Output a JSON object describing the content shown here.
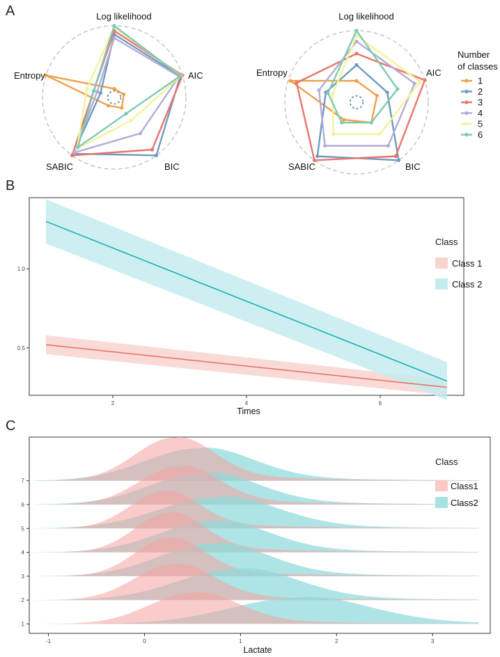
{
  "panels": {
    "a": "A",
    "b": "B",
    "c": "C"
  },
  "chart_data": [
    {
      "type": "radar",
      "panel": "A-left",
      "axes": [
        "Log likelihood",
        "AIC",
        "BIC",
        "SABIC",
        "Entropy"
      ],
      "series": [
        {
          "name": "1",
          "values": [
            0.12,
            0.14,
            0.18,
            0.14,
            1.0
          ]
        },
        {
          "name": "2",
          "values": [
            0.88,
            0.97,
            1.0,
            0.97,
            0.2
          ]
        },
        {
          "name": "3",
          "values": [
            0.93,
            1.0,
            0.9,
            1.0,
            0.3
          ]
        },
        {
          "name": "4",
          "values": [
            0.83,
            0.95,
            0.62,
            0.95,
            0.25
          ]
        },
        {
          "name": "5",
          "values": [
            0.98,
            0.98,
            0.4,
            0.88,
            0.4
          ]
        },
        {
          "name": "6",
          "values": [
            1.0,
            0.97,
            0.28,
            0.86,
            0.3
          ]
        }
      ]
    },
    {
      "type": "radar",
      "panel": "A-right",
      "axes": [
        "Log likelihood",
        "AIC",
        "BIC",
        "SABIC",
        "Entropy"
      ],
      "series": [
        {
          "name": "1",
          "values": [
            0.3,
            0.3,
            0.35,
            0.3,
            0.97
          ]
        },
        {
          "name": "2",
          "values": [
            0.52,
            0.45,
            1.0,
            0.93,
            0.45
          ]
        },
        {
          "name": "3",
          "values": [
            0.68,
            1.0,
            0.93,
            1.0,
            0.88
          ]
        },
        {
          "name": "4",
          "values": [
            0.85,
            0.85,
            0.75,
            0.75,
            0.55
          ]
        },
        {
          "name": "5",
          "values": [
            0.93,
            0.93,
            0.55,
            0.55,
            0.35
          ]
        },
        {
          "name": "6",
          "values": [
            1.0,
            0.6,
            0.35,
            0.35,
            0.42
          ]
        }
      ]
    },
    {
      "type": "line",
      "panel": "B",
      "xlabel": "Times",
      "ylabel": "",
      "xlim": [
        0.75,
        7.25
      ],
      "ylim": [
        0.2,
        1.45
      ],
      "xticks": [
        "2",
        "4",
        "6"
      ],
      "xtick_values": [
        2,
        4,
        6
      ],
      "yticks": [
        "0.5",
        "1.0"
      ],
      "ytick_values": [
        0.5,
        1.0
      ],
      "series": [
        {
          "name": "Class 1",
          "x": [
            1,
            7
          ],
          "y": [
            0.52,
            0.25
          ],
          "lower": [
            0.46,
            0.2
          ],
          "upper": [
            0.58,
            0.3
          ],
          "line_color": "#E8736C",
          "fill_color": "#F9D3D0"
        },
        {
          "name": "Class 2",
          "x": [
            1,
            7
          ],
          "y": [
            1.3,
            0.29
          ],
          "lower": [
            1.16,
            0.17
          ],
          "upper": [
            1.44,
            0.41
          ],
          "line_color": "#1FB0B5",
          "fill_color": "#C4ECEE"
        }
      ],
      "legend_title": "Class"
    },
    {
      "type": "ridgeline",
      "panel": "C",
      "xlabel": "Lactate",
      "xlim": [
        -1.2,
        3.6
      ],
      "xticks": [
        "-1",
        "0",
        "1",
        "2",
        "3"
      ],
      "xtick_values": [
        -1,
        0,
        1,
        2,
        3
      ],
      "yticks": [
        "1",
        "2",
        "3",
        "4",
        "5",
        "6",
        "7"
      ],
      "legend_title": "Class",
      "groups": [
        {
          "y": 1,
          "class1": {
            "peak": 0.5,
            "sd": 0.45,
            "height": 1.3
          },
          "class2": {
            "peak": 1.6,
            "sd": 0.7,
            "height": 1.1
          }
        },
        {
          "y": 2,
          "class1": {
            "peak": 0.3,
            "sd": 0.4,
            "height": 1.5
          },
          "class2": {
            "peak": 0.95,
            "sd": 0.6,
            "height": 1.3
          }
        },
        {
          "y": 3,
          "class1": {
            "peak": 0.25,
            "sd": 0.35,
            "height": 1.6
          },
          "class2": {
            "peak": 0.7,
            "sd": 0.55,
            "height": 1.35
          }
        },
        {
          "y": 4,
          "class1": {
            "peak": 0.25,
            "sd": 0.35,
            "height": 1.65
          },
          "class2": {
            "peak": 0.7,
            "sd": 0.55,
            "height": 1.3
          }
        },
        {
          "y": 5,
          "class1": {
            "peak": 0.2,
            "sd": 0.35,
            "height": 1.55
          },
          "class2": {
            "peak": 0.75,
            "sd": 0.6,
            "height": 1.3
          }
        },
        {
          "y": 6,
          "class1": {
            "peak": 0.35,
            "sd": 0.4,
            "height": 1.6
          },
          "class2": {
            "peak": 0.6,
            "sd": 0.55,
            "height": 1.3
          }
        },
        {
          "y": 7,
          "class1": {
            "peak": 0.3,
            "sd": 0.4,
            "height": 1.8
          },
          "class2": {
            "peak": 0.55,
            "sd": 0.55,
            "height": 1.35
          }
        }
      ],
      "classes": [
        {
          "name": "Class1",
          "color": "#F4A3A0"
        },
        {
          "name": "Class2",
          "color": "#8FD9DB"
        }
      ]
    }
  ],
  "legend_a": {
    "title_line1": "Number",
    "title_line2": "of classes",
    "items": [
      {
        "label": "1",
        "color": "#F0A048"
      },
      {
        "label": "2",
        "color": "#6E9AC0"
      },
      {
        "label": "3",
        "color": "#E8736C"
      },
      {
        "label": "4",
        "color": "#B3ACD6"
      },
      {
        "label": "5",
        "color": "#F4F29A"
      },
      {
        "label": "6",
        "color": "#7DC9B3"
      }
    ]
  },
  "legend_b": {
    "title": "Class",
    "items": [
      "Class 1",
      "Class 2"
    ]
  },
  "legend_c": {
    "title": "Class",
    "items": [
      "Class1",
      "Class2"
    ]
  }
}
